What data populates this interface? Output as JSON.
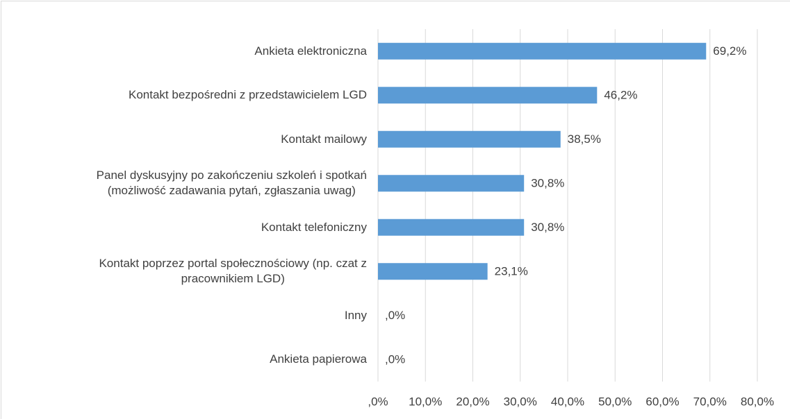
{
  "chart_data": {
    "type": "bar",
    "orientation": "horizontal",
    "categories": [
      "Ankieta elektroniczna",
      "Kontakt bezpośredni z przedstawicielem LGD",
      "Kontakt mailowy",
      "Panel dyskusyjny po zakończeniu szkoleń i spotkań\n(możliwość zadawania pytań, zgłaszania uwag)",
      "Kontakt telefoniczny",
      "Kontakt poprzez portal społecznościowy (np. czat z\npracownikiem LGD)",
      "Inny",
      "Ankieta papierowa"
    ],
    "values": [
      69.2,
      46.2,
      38.5,
      30.8,
      30.8,
      23.1,
      0,
      0
    ],
    "value_labels": [
      "69,2%",
      "46,2%",
      "38,5%",
      "30,8%",
      "30,8%",
      "23,1%",
      ",0%",
      ",0%"
    ],
    "color": "#5b9bd5",
    "xlim": [
      0,
      80
    ],
    "xticks": [
      {
        "value": 0,
        "label": ",0%"
      },
      {
        "value": 10,
        "label": "10,0%"
      },
      {
        "value": 20,
        "label": "20,0%"
      },
      {
        "value": 30,
        "label": "30,0%"
      },
      {
        "value": 40,
        "label": "40,0%"
      },
      {
        "value": 50,
        "label": "50,0%"
      },
      {
        "value": 60,
        "label": "60,0%"
      },
      {
        "value": 70,
        "label": "70,0%"
      },
      {
        "value": 80,
        "label": "80,0%"
      }
    ],
    "grid": true
  }
}
